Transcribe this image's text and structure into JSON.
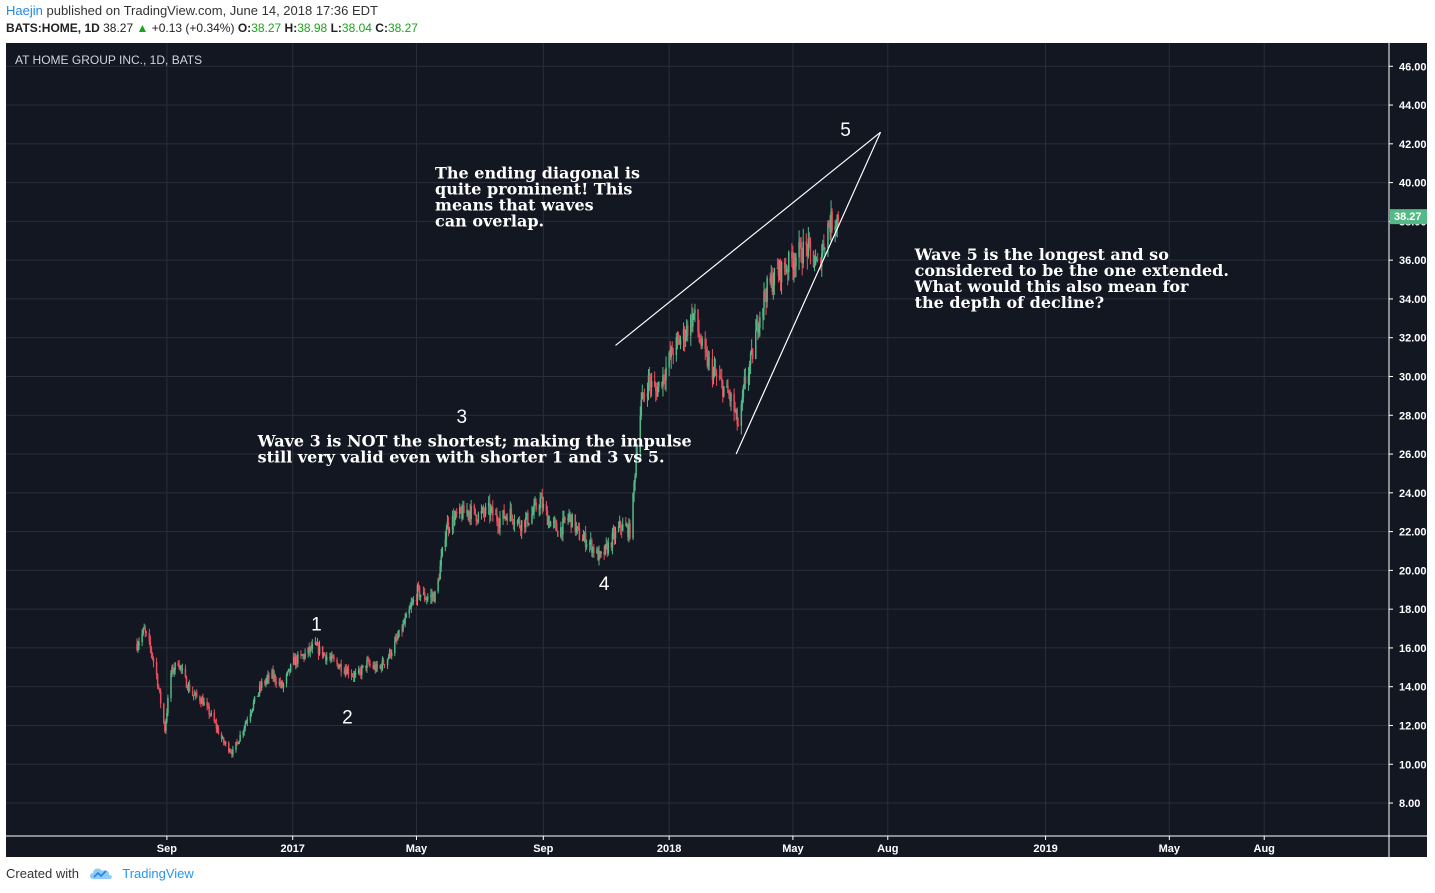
{
  "header": {
    "author": "Haejin",
    "published": "published on TradingView.com, June 14, 2018 17:36 EDT",
    "symbol": "BATS:HOME, 1D",
    "last": "38.27",
    "change_arrow": "▲",
    "change": "+0.13 (+0.34%)",
    "open_label": "O:",
    "open": "38.27",
    "high_label": "H:",
    "high": "38.98",
    "low_label": "L:",
    "low": "38.04",
    "close_label": "C:",
    "close": "38.27"
  },
  "footer": {
    "created_with": "Created with",
    "brand": "TradingView",
    "logo_icon": "tradingview-cloud-icon"
  },
  "colors": {
    "background": "#131722",
    "grid": "#2a2e39",
    "up": "#53b987",
    "down": "#eb4d5c",
    "price_tag": "#53b987",
    "axis_text": "#ffffff"
  },
  "chart_data": {
    "type": "candlestick",
    "title": "AT HOME GROUP INC., 1D, BATS",
    "ylim": [
      6.3,
      47.2
    ],
    "y_ticks": [
      "8.00",
      "10.00",
      "12.00",
      "14.00",
      "16.00",
      "18.00",
      "20.00",
      "22.00",
      "24.00",
      "26.00",
      "28.00",
      "30.00",
      "32.00",
      "34.00",
      "36.00",
      "38.00",
      "40.00",
      "42.00",
      "44.00",
      "46.00"
    ],
    "x_ticks": [
      {
        "label": "Sep",
        "date": "2016-09-01"
      },
      {
        "label": "2017",
        "date": "2017-01-01"
      },
      {
        "label": "May",
        "date": "2017-05-01"
      },
      {
        "label": "Sep",
        "date": "2017-09-01"
      },
      {
        "label": "2018",
        "date": "2018-01-01"
      },
      {
        "label": "May",
        "date": "2018-05-01"
      },
      {
        "label": "Aug",
        "date": "2018-08-01"
      },
      {
        "label": "2019",
        "date": "2019-01-01"
      },
      {
        "label": "May",
        "date": "2019-05-01"
      },
      {
        "label": "Aug",
        "date": "2019-08-01"
      }
    ],
    "x_range": [
      "2016-03-29",
      "2019-11-30"
    ],
    "last_price": "38.27",
    "price_path": [
      [
        "2016-08-03",
        16.2
      ],
      [
        "2016-08-10",
        16.9
      ],
      [
        "2016-08-17",
        15.8
      ],
      [
        "2016-08-22",
        14.6
      ],
      [
        "2016-08-30",
        11.8
      ],
      [
        "2016-09-05",
        14.7
      ],
      [
        "2016-09-12",
        15.3
      ],
      [
        "2016-09-19",
        14.3
      ],
      [
        "2016-09-26",
        13.6
      ],
      [
        "2016-10-05",
        13.3
      ],
      [
        "2016-10-15",
        12.4
      ],
      [
        "2016-10-25",
        11.2
      ],
      [
        "2016-11-04",
        10.6
      ],
      [
        "2016-11-12",
        11.6
      ],
      [
        "2016-11-22",
        12.9
      ],
      [
        "2016-12-02",
        14.1
      ],
      [
        "2016-12-12",
        14.6
      ],
      [
        "2016-12-22",
        14.0
      ],
      [
        "2017-01-02",
        15.3
      ],
      [
        "2017-01-12",
        15.6
      ],
      [
        "2017-01-22",
        16.1
      ],
      [
        "2017-02-02",
        15.6
      ],
      [
        "2017-02-12",
        15.2
      ],
      [
        "2017-02-22",
        14.9
      ],
      [
        "2017-03-04",
        14.5
      ],
      [
        "2017-03-14",
        15.2
      ],
      [
        "2017-03-24",
        14.9
      ],
      [
        "2017-04-02",
        15.4
      ],
      [
        "2017-04-12",
        16.4
      ],
      [
        "2017-04-22",
        17.6
      ],
      [
        "2017-05-02",
        18.9
      ],
      [
        "2017-05-10",
        18.6
      ],
      [
        "2017-05-20",
        18.7
      ],
      [
        "2017-05-30",
        22.3
      ],
      [
        "2017-06-10",
        22.8
      ],
      [
        "2017-06-20",
        23.1
      ],
      [
        "2017-06-30",
        22.8
      ],
      [
        "2017-07-10",
        23.1
      ],
      [
        "2017-07-20",
        22.6
      ],
      [
        "2017-07-30",
        23.0
      ],
      [
        "2017-08-09",
        22.4
      ],
      [
        "2017-08-19",
        22.7
      ],
      [
        "2017-08-29",
        23.6
      ],
      [
        "2017-09-06",
        22.6
      ],
      [
        "2017-09-16",
        22.0
      ],
      [
        "2017-09-26",
        22.8
      ],
      [
        "2017-10-06",
        21.8
      ],
      [
        "2017-10-16",
        21.4
      ],
      [
        "2017-10-26",
        20.6
      ],
      [
        "2017-11-05",
        21.4
      ],
      [
        "2017-11-15",
        22.3
      ],
      [
        "2017-11-25",
        22.0
      ],
      [
        "2017-11-30",
        26.0
      ],
      [
        "2017-12-05",
        28.6
      ],
      [
        "2017-12-12",
        29.8
      ],
      [
        "2017-12-19",
        29.2
      ],
      [
        "2017-12-26",
        30.0
      ],
      [
        "2018-01-05",
        31.4
      ],
      [
        "2018-01-15",
        32.1
      ],
      [
        "2018-01-25",
        33.2
      ],
      [
        "2018-02-03",
        31.2
      ],
      [
        "2018-02-13",
        30.2
      ],
      [
        "2018-02-23",
        29.4
      ],
      [
        "2018-03-03",
        28.7
      ],
      [
        "2018-03-10",
        27.2
      ],
      [
        "2018-03-15",
        29.6
      ],
      [
        "2018-03-22",
        30.9
      ],
      [
        "2018-03-29",
        33.1
      ],
      [
        "2018-04-05",
        34.4
      ],
      [
        "2018-04-15",
        35.3
      ],
      [
        "2018-04-25",
        35.7
      ],
      [
        "2018-05-05",
        36.3
      ],
      [
        "2018-05-15",
        36.6
      ],
      [
        "2018-05-25",
        35.6
      ],
      [
        "2018-06-04",
        37.8
      ],
      [
        "2018-06-14",
        38.3
      ]
    ],
    "wave_labels": [
      {
        "text": "1",
        "date": "2017-01-24",
        "price": 16.9
      },
      {
        "text": "2",
        "date": "2017-02-23",
        "price": 12.1
      },
      {
        "text": "3",
        "date": "2017-06-14",
        "price": 27.6
      },
      {
        "text": "4",
        "date": "2017-10-30",
        "price": 19.0
      },
      {
        "text": "5",
        "date": "2018-06-21",
        "price": 42.4
      }
    ],
    "trendlines": [
      {
        "from": [
          "2017-11-10",
          31.6
        ],
        "to": [
          "2018-07-25",
          42.6
        ]
      },
      {
        "from": [
          "2018-03-07",
          26.0
        ],
        "to": [
          "2018-07-25",
          42.6
        ]
      }
    ],
    "annotations": [
      {
        "lines": [
          "The ending diagonal is",
          "quite prominent! This",
          "means that waves",
          "can overlap."
        ],
        "date": "2017-05-19",
        "price": 40.2
      },
      {
        "lines": [
          "Wave 3 is NOT the shortest; making the impulse",
          "still very valid even with shorter 1 and 3 vs 5."
        ],
        "date": "2016-11-28",
        "price": 26.4
      },
      {
        "lines": [
          "Wave 5 is the longest and so",
          "considered to be the one extended.",
          "What would this also mean for",
          "the depth of decline?"
        ],
        "date": "2018-08-27",
        "price": 36.0
      }
    ]
  }
}
